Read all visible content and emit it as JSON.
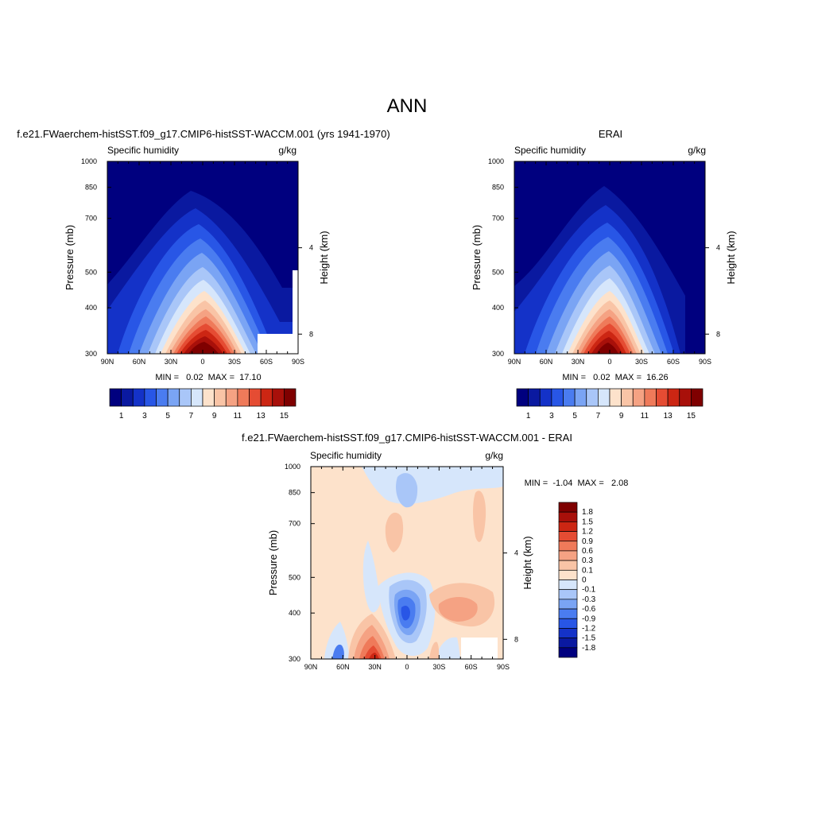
{
  "page": {
    "title": "ANN"
  },
  "panels": [
    {
      "title": "f.e21.FWaerchem-histSST.f09_g17.CMIP6-histSST-WACCM.001 (yrs 1941-1970)",
      "left_label": "Specific humidity",
      "right_label": "g/kg",
      "stats": "MIN =   0.02  MAX =  17.10"
    },
    {
      "title": "ERAI",
      "left_label": "Specific humidity",
      "right_label": "g/kg",
      "stats": "MIN =   0.02  MAX =  16.26"
    },
    {
      "title": "f.e21.FWaerchem-histSST.f09_g17.CMIP6-histSST-WACCM.001 - ERAI",
      "left_label": "Specific humidity",
      "right_label": "g/kg",
      "stats": "MIN =  -1.04  MAX =   2.08"
    }
  ],
  "colors": {
    "abs_scale": [
      "#00007f",
      "#0a19a0",
      "#1432c8",
      "#2856e6",
      "#4a7cf0",
      "#7aa4f4",
      "#a9c6f8",
      "#d6e6fb",
      "#fde2cb",
      "#f9c4a6",
      "#f5a283",
      "#ef7a5a",
      "#e54c33",
      "#cc2613",
      "#a8100a",
      "#7f0000"
    ],
    "diff_scale": [
      "#00007f",
      "#0a19a0",
      "#1432c8",
      "#2856e6",
      "#4a7cf0",
      "#7aa4f4",
      "#a9c6f8",
      "#d6e6fb",
      "#fde2cb",
      "#f9c4a6",
      "#f5a283",
      "#ef7a5a",
      "#e54c33",
      "#cc2613",
      "#a8100a",
      "#7f0000"
    ]
  },
  "chart_data": [
    {
      "type": "heatmap",
      "title": "f.e21.FWaerchem-histSST.f09_g17.CMIP6-histSST-WACCM.001 (yrs 1941-1970)",
      "subtitle_left": "Specific humidity",
      "units": "g/kg",
      "xlabel": "",
      "ylabel": "Pressure (mb)",
      "ylabel_right": "Height (km)",
      "x_ticks": [
        "90N",
        "60N",
        "30N",
        "0",
        "30S",
        "60S",
        "90S"
      ],
      "xlim": [
        90,
        -90
      ],
      "y_ticks": [
        300,
        400,
        500,
        700,
        850,
        1000
      ],
      "y_scale": "log",
      "ylim": [
        1000,
        300
      ],
      "y2_ticks": [
        4,
        8
      ],
      "contour_levels": [
        1,
        2,
        3,
        4,
        5,
        6,
        7,
        8,
        9,
        10,
        11,
        12,
        13,
        14,
        15
      ],
      "colorbar_labels": [
        "1",
        "3",
        "5",
        "7",
        "9",
        "11",
        "13",
        "15"
      ],
      "min": 0.02,
      "max": 17.1,
      "masked_regions": [
        {
          "description": "below surface",
          "lat_range": [
            -50,
            -82
          ],
          "p_range": [
            920,
            1000
          ]
        },
        {
          "description": "below surface",
          "lat_range": [
            -82,
            -90
          ],
          "p_range": [
            700,
            1000
          ]
        }
      ]
    },
    {
      "type": "heatmap",
      "title": "ERAI",
      "subtitle_left": "Specific humidity",
      "units": "g/kg",
      "xlabel": "",
      "ylabel": "Pressure (mb)",
      "ylabel_right": "Height (km)",
      "x_ticks": [
        "90N",
        "60N",
        "30N",
        "0",
        "30S",
        "60S",
        "90S"
      ],
      "xlim": [
        90,
        -90
      ],
      "y_ticks": [
        300,
        400,
        500,
        700,
        850,
        1000
      ],
      "y_scale": "log",
      "ylim": [
        1000,
        300
      ],
      "y2_ticks": [
        4,
        8
      ],
      "contour_levels": [
        1,
        2,
        3,
        4,
        5,
        6,
        7,
        8,
        9,
        10,
        11,
        12,
        13,
        14,
        15
      ],
      "colorbar_labels": [
        "1",
        "3",
        "5",
        "7",
        "9",
        "11",
        "13",
        "15"
      ],
      "min": 0.02,
      "max": 16.26
    },
    {
      "type": "heatmap",
      "title": "f.e21.FWaerchem-histSST.f09_g17.CMIP6-histSST-WACCM.001 - ERAI",
      "subtitle_left": "Specific humidity",
      "units": "g/kg",
      "xlabel": "",
      "ylabel": "Pressure (mb)",
      "ylabel_right": "Height (km)",
      "x_ticks": [
        "90N",
        "60N",
        "30N",
        "0",
        "30S",
        "60S",
        "90S"
      ],
      "xlim": [
        90,
        -90
      ],
      "y_ticks": [
        300,
        400,
        500,
        700,
        850,
        1000
      ],
      "y_scale": "log",
      "ylim": [
        1000,
        300
      ],
      "y2_ticks": [
        4,
        8
      ],
      "contour_levels": [
        -1.8,
        -1.5,
        -1.2,
        -0.9,
        -0.6,
        -0.3,
        -0.1,
        0,
        0.1,
        0.3,
        0.6,
        0.9,
        1.2,
        1.5,
        1.8
      ],
      "colorbar_labels": [
        "1.8",
        "1.5",
        "1.2",
        "0.9",
        "0.6",
        "0.3",
        "0.1",
        "0",
        "-0.1",
        "-0.3",
        "-0.6",
        "-0.9",
        "-1.2",
        "-1.5",
        "-1.8"
      ],
      "min": -1.04,
      "max": 2.08,
      "masked_regions": [
        {
          "description": "below surface",
          "lat_range": [
            -50,
            -90
          ],
          "p_range": [
            920,
            1000
          ]
        }
      ]
    }
  ]
}
